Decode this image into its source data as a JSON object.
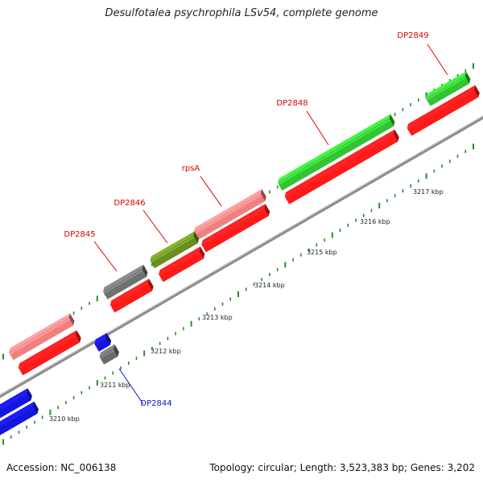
{
  "title": "Desulfotalea psychrophila LSv54, complete genome",
  "footer": {
    "accession": "Accession: NC_006138",
    "summary": "Topology: circular; Length: 3,523,383 bp; Genes: 3,202"
  },
  "colors": {
    "backbone": "#909090",
    "tick": "#2a8a2a",
    "label_default": "#e00000",
    "label_blue": "#1010cc"
  },
  "gene_labels": [
    "DP2849",
    "DP2848",
    "rpsA",
    "DP2846",
    "DP2845",
    "DP2844"
  ],
  "kbp_labels": [
    "3210 kbp",
    "3211 kbp",
    "3212 kbp",
    "3213 kbp",
    "3214 kbp",
    "3215 kbp",
    "3216 kbp",
    "3217 kbp"
  ]
}
